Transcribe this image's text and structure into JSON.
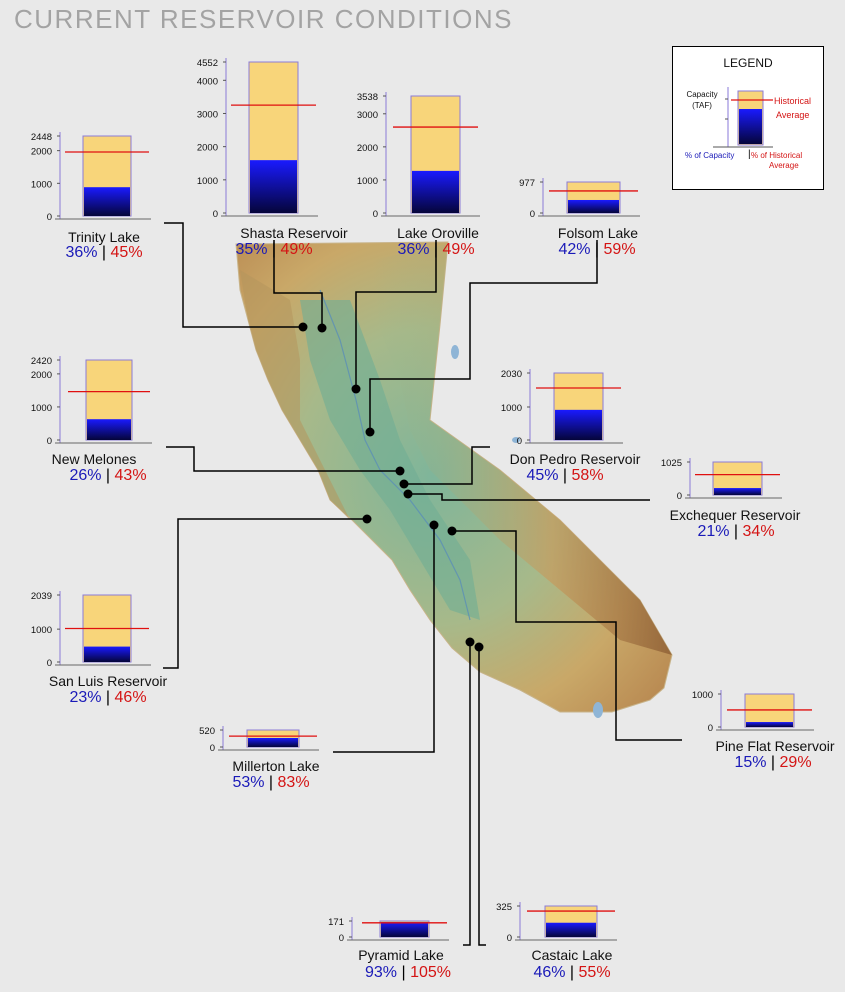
{
  "title": "CURRENT RESERVOIR CONDITIONS",
  "legend": {
    "title": "LEGEND",
    "capacity_label": "Capacity (TAF)",
    "historical_label_1": "Historical",
    "historical_label_2": "Average",
    "pct_capacity_label": "% of Capacity",
    "pct_historical_label_1": "% of Historical",
    "pct_historical_label_2": "Average",
    "separator": "|"
  },
  "colors": {
    "capacity_fill": "#f8d57a",
    "storage_top": "#1414ff",
    "storage_bottom": "#05053a",
    "historical_line": "#e01010",
    "bar_border": "#8a7ad8"
  },
  "chart_data": {
    "type": "bar",
    "unit": "TAF",
    "reservoirs": [
      {
        "name": "Trinity Lake",
        "capacity": 2448,
        "ticks": [
          0,
          1000,
          2000,
          2448
        ],
        "tick_labels": [
          "0",
          "1000",
          "2000",
          "2448"
        ],
        "pct_capacity": "36%",
        "pct_historical": "45%",
        "capacity_pct": 36,
        "historical_pct": 45
      },
      {
        "name": "Shasta Reservoir",
        "capacity": 4552,
        "ticks": [
          0,
          1000,
          2000,
          3000,
          4000,
          4552
        ],
        "tick_labels": [
          "0",
          "1000",
          "2000",
          "3000",
          "4000",
          "4552"
        ],
        "pct_capacity": "35%",
        "pct_historical": "49%",
        "capacity_pct": 35,
        "historical_pct": 49
      },
      {
        "name": "Lake Oroville",
        "capacity": 3538,
        "ticks": [
          0,
          1000,
          2000,
          3000,
          3538
        ],
        "tick_labels": [
          "0",
          "1000",
          "2000",
          "3000",
          "3538"
        ],
        "pct_capacity": "36%",
        "pct_historical": "49%",
        "capacity_pct": 36,
        "historical_pct": 49
      },
      {
        "name": "Folsom Lake",
        "capacity": 977,
        "ticks": [
          0,
          977
        ],
        "tick_labels": [
          "0",
          "977"
        ],
        "pct_capacity": "42%",
        "pct_historical": "59%",
        "capacity_pct": 42,
        "historical_pct": 59
      },
      {
        "name": "New Melones",
        "capacity": 2420,
        "ticks": [
          0,
          1000,
          2000,
          2420
        ],
        "tick_labels": [
          "0",
          "1000",
          "2000",
          "2420"
        ],
        "pct_capacity": "26%",
        "pct_historical": "43%",
        "capacity_pct": 26,
        "historical_pct": 43
      },
      {
        "name": "Don Pedro Reservoir",
        "capacity": 2030,
        "ticks": [
          0,
          1000,
          2030
        ],
        "tick_labels": [
          "0",
          "1000",
          "2030"
        ],
        "pct_capacity": "45%",
        "pct_historical": "58%",
        "capacity_pct": 45,
        "historical_pct": 58
      },
      {
        "name": "Exchequer Reservoir",
        "capacity": 1025,
        "ticks": [
          0,
          1025
        ],
        "tick_labels": [
          "0",
          "1025"
        ],
        "pct_capacity": "21%",
        "pct_historical": "34%",
        "capacity_pct": 21,
        "historical_pct": 34
      },
      {
        "name": "San Luis Reservoir",
        "capacity": 2039,
        "ticks": [
          0,
          1000,
          2039
        ],
        "tick_labels": [
          "0",
          "1000",
          "2039"
        ],
        "pct_capacity": "23%",
        "pct_historical": "46%",
        "capacity_pct": 23,
        "historical_pct": 46
      },
      {
        "name": "Pine Flat Reservoir",
        "capacity": 1000,
        "ticks": [
          0,
          1000
        ],
        "tick_labels": [
          "0",
          "1000"
        ],
        "pct_capacity": "15%",
        "pct_historical": "29%",
        "capacity_pct": 15,
        "historical_pct": 29
      },
      {
        "name": "Millerton Lake",
        "capacity": 520,
        "ticks": [
          0,
          520
        ],
        "tick_labels": [
          "0",
          "520"
        ],
        "pct_capacity": "53%",
        "pct_historical": "83%",
        "capacity_pct": 53,
        "historical_pct": 83
      },
      {
        "name": "Pyramid Lake",
        "capacity": 171,
        "ticks": [
          0,
          171
        ],
        "tick_labels": [
          "0",
          "171"
        ],
        "pct_capacity": "93%",
        "pct_historical": "105%",
        "capacity_pct": 93,
        "historical_pct": 105
      },
      {
        "name": "Castaic Lake",
        "capacity": 325,
        "ticks": [
          0,
          325
        ],
        "tick_labels": [
          "0",
          "325"
        ],
        "pct_capacity": "46%",
        "pct_historical": "55%",
        "capacity_pct": 46,
        "historical_pct": 55
      }
    ]
  }
}
